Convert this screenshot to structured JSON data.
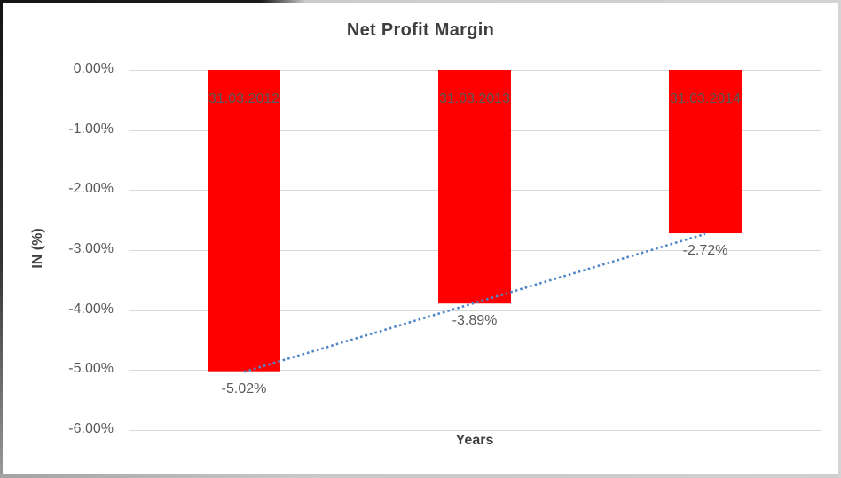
{
  "chart_data": {
    "type": "bar",
    "title": "Net Profit Margin",
    "xlabel": "Years",
    "ylabel": "IN (%)",
    "categories": [
      "31.03.2012",
      "31.03.2013",
      "31.03.2014"
    ],
    "series": [
      {
        "name": "Net Profit Margin",
        "color": "#ff0000",
        "values": [
          -5.02,
          -3.89,
          -2.72
        ]
      }
    ],
    "data_labels": [
      "-5.02%",
      "-3.89%",
      "-2.72%"
    ],
    "y_axis": {
      "tick_labels": [
        "0.00%",
        "-1.00%",
        "-2.00%",
        "-3.00%",
        "-4.00%",
        "-5.00%",
        "-6.00%"
      ],
      "tick_values": [
        0,
        -1,
        -2,
        -3,
        -4,
        -5,
        -6
      ],
      "min": -6,
      "max": 0
    },
    "grid": true,
    "legend": false,
    "trendline": {
      "type": "linear",
      "style": "dotted",
      "color": "#4f86c8",
      "start_value": -5.03,
      "end_value": -2.73
    },
    "colors": {
      "bar": "#ff0000",
      "gridline": "#d9d9d9",
      "label_text": "#595959",
      "title_text": "#3f3f3f"
    }
  }
}
